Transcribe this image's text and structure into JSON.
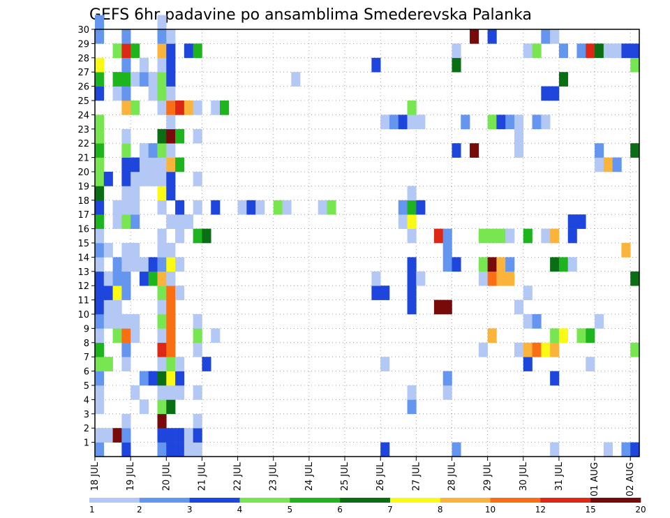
{
  "chart_data": {
    "type": "heatmap",
    "title": "GEFS 6hr padavine po ansamblima Smederevska Palanka",
    "xlabel": "",
    "ylabel": "",
    "grid": true,
    "y_range": [
      0,
      30
    ],
    "x_range": [
      0,
      61
    ],
    "y_ticks": [
      "1",
      "2",
      "3",
      "4",
      "5",
      "6",
      "7",
      "8",
      "9",
      "10",
      "11",
      "12",
      "13",
      "14",
      "15",
      "16",
      "17",
      "18",
      "19",
      "20",
      "21",
      "22",
      "23",
      "24",
      "25",
      "26",
      "27",
      "28",
      "29",
      "30"
    ],
    "x_ticks": [
      {
        "label": "18 JUL",
        "x": 0
      },
      {
        "label": "19 JUL",
        "x": 4
      },
      {
        "label": "20 JUL",
        "x": 8
      },
      {
        "label": "21 JUL",
        "x": 12
      },
      {
        "label": "22 JUL",
        "x": 16
      },
      {
        "label": "23 JUL",
        "x": 20
      },
      {
        "label": "24 JUL",
        "x": 24
      },
      {
        "label": "25 JUL",
        "x": 28
      },
      {
        "label": "26 JUL",
        "x": 32
      },
      {
        "label": "27 JUL",
        "x": 36
      },
      {
        "label": "28 JUL",
        "x": 40
      },
      {
        "label": "29 JUL",
        "x": 44
      },
      {
        "label": "30 JUL",
        "x": 48
      },
      {
        "label": "31 JUL",
        "x": 52
      },
      {
        "label": "01 AUG",
        "x": 56
      },
      {
        "label": "02 AUG",
        "x": 60
      }
    ],
    "legend": {
      "placement": "bottom",
      "colors": [
        "#b4c8f5",
        "#6496f0",
        "#1e46dc",
        "#78e650",
        "#1eb41e",
        "#0a6e14",
        "#fafa14",
        "#fab43c",
        "#fa6e14",
        "#dc2814",
        "#780a0a"
      ],
      "labels": [
        "1",
        "2",
        "3",
        "4",
        "5",
        "6",
        "7",
        "8",
        "10",
        "12",
        "15",
        "20"
      ]
    },
    "cells": [
      [
        0,
        0,
        1
      ],
      [
        0,
        1,
        0
      ],
      [
        0,
        3,
        0
      ],
      [
        0,
        4,
        0
      ],
      [
        0,
        5,
        1
      ],
      [
        0,
        6,
        3
      ],
      [
        0,
        7,
        4
      ],
      [
        0,
        8,
        0
      ],
      [
        0,
        9,
        1
      ],
      [
        0,
        10,
        2
      ],
      [
        0,
        11,
        2
      ],
      [
        0,
        12,
        2
      ],
      [
        0,
        13,
        0
      ],
      [
        0,
        14,
        1
      ],
      [
        0,
        15,
        0
      ],
      [
        0,
        16,
        4
      ],
      [
        0,
        17,
        2
      ],
      [
        0,
        18,
        5
      ],
      [
        0,
        19,
        3
      ],
      [
        0,
        20,
        3
      ],
      [
        0,
        21,
        4
      ],
      [
        0,
        22,
        3
      ],
      [
        0,
        23,
        3
      ],
      [
        0,
        25,
        2
      ],
      [
        0,
        26,
        4
      ],
      [
        0,
        27,
        6
      ],
      [
        0,
        29,
        1
      ],
      [
        0,
        30,
        1
      ],
      [
        1,
        1,
        0
      ],
      [
        1,
        6,
        3
      ],
      [
        1,
        9,
        0
      ],
      [
        1,
        10,
        0
      ],
      [
        1,
        11,
        2
      ],
      [
        1,
        12,
        0
      ],
      [
        1,
        14,
        0
      ],
      [
        1,
        19,
        2
      ],
      [
        2,
        1,
        10
      ],
      [
        2,
        8,
        3
      ],
      [
        2,
        9,
        0
      ],
      [
        2,
        10,
        0
      ],
      [
        2,
        11,
        6
      ],
      [
        2,
        12,
        1
      ],
      [
        2,
        13,
        1
      ],
      [
        2,
        16,
        0
      ],
      [
        2,
        17,
        0
      ],
      [
        2,
        25,
        0
      ],
      [
        2,
        26,
        4
      ],
      [
        2,
        28,
        3
      ],
      [
        3,
        0,
        2
      ],
      [
        3,
        1,
        1
      ],
      [
        3,
        2,
        0
      ],
      [
        3,
        6,
        0
      ],
      [
        3,
        7,
        1
      ],
      [
        3,
        8,
        8
      ],
      [
        3,
        9,
        0
      ],
      [
        3,
        11,
        1
      ],
      [
        3,
        12,
        1
      ],
      [
        3,
        13,
        0
      ],
      [
        3,
        14,
        0
      ],
      [
        3,
        16,
        3
      ],
      [
        3,
        17,
        0
      ],
      [
        3,
        18,
        0
      ],
      [
        3,
        19,
        2
      ],
      [
        3,
        20,
        2
      ],
      [
        3,
        21,
        3
      ],
      [
        3,
        22,
        0
      ],
      [
        3,
        24,
        7
      ],
      [
        3,
        25,
        1
      ],
      [
        3,
        26,
        4
      ],
      [
        3,
        27,
        1
      ],
      [
        3,
        28,
        9
      ],
      [
        3,
        29,
        1
      ],
      [
        4,
        4,
        0
      ],
      [
        4,
        8,
        0
      ],
      [
        4,
        9,
        0
      ],
      [
        4,
        13,
        0
      ],
      [
        4,
        14,
        0
      ],
      [
        4,
        16,
        1
      ],
      [
        4,
        17,
        0
      ],
      [
        4,
        18,
        0
      ],
      [
        4,
        19,
        0
      ],
      [
        4,
        20,
        2
      ],
      [
        4,
        24,
        3
      ],
      [
        4,
        26,
        0
      ],
      [
        4,
        28,
        4
      ],
      [
        5,
        3,
        0
      ],
      [
        5,
        5,
        1
      ],
      [
        5,
        12,
        2
      ],
      [
        5,
        13,
        0
      ],
      [
        5,
        19,
        0
      ],
      [
        5,
        20,
        0
      ],
      [
        5,
        21,
        0
      ],
      [
        5,
        26,
        1
      ],
      [
        5,
        27,
        0
      ],
      [
        6,
        5,
        2
      ],
      [
        6,
        12,
        4
      ],
      [
        6,
        13,
        2
      ],
      [
        6,
        19,
        0
      ],
      [
        6,
        20,
        0
      ],
      [
        6,
        21,
        1
      ],
      [
        6,
        25,
        0
      ],
      [
        6,
        26,
        0
      ],
      [
        7,
        0,
        1
      ],
      [
        7,
        1,
        2
      ],
      [
        7,
        2,
        10
      ],
      [
        7,
        3,
        3
      ],
      [
        7,
        4,
        0
      ],
      [
        7,
        5,
        5
      ],
      [
        7,
        6,
        0
      ],
      [
        7,
        7,
        9
      ],
      [
        7,
        8,
        0
      ],
      [
        7,
        9,
        3
      ],
      [
        7,
        10,
        0
      ],
      [
        7,
        11,
        3
      ],
      [
        7,
        12,
        7
      ],
      [
        7,
        13,
        1
      ],
      [
        7,
        14,
        0
      ],
      [
        7,
        15,
        0
      ],
      [
        7,
        17,
        0
      ],
      [
        7,
        18,
        6
      ],
      [
        7,
        19,
        0
      ],
      [
        7,
        20,
        0
      ],
      [
        7,
        21,
        3
      ],
      [
        7,
        22,
        5
      ],
      [
        7,
        24,
        0
      ],
      [
        7,
        25,
        3
      ],
      [
        7,
        26,
        3
      ],
      [
        7,
        27,
        0
      ],
      [
        7,
        28,
        7
      ],
      [
        7,
        29,
        1
      ],
      [
        7,
        30,
        0
      ],
      [
        8,
        0,
        2
      ],
      [
        8,
        1,
        2
      ],
      [
        8,
        3,
        5
      ],
      [
        8,
        4,
        0
      ],
      [
        8,
        5,
        6
      ],
      [
        8,
        6,
        3
      ],
      [
        8,
        7,
        8
      ],
      [
        8,
        8,
        8
      ],
      [
        8,
        9,
        8
      ],
      [
        8,
        10,
        8
      ],
      [
        8,
        11,
        8
      ],
      [
        8,
        12,
        0
      ],
      [
        8,
        13,
        6
      ],
      [
        8,
        14,
        0
      ],
      [
        8,
        16,
        0
      ],
      [
        8,
        18,
        2
      ],
      [
        8,
        19,
        2
      ],
      [
        8,
        20,
        7
      ],
      [
        8,
        21,
        0
      ],
      [
        8,
        22,
        10
      ],
      [
        8,
        23,
        0
      ],
      [
        8,
        24,
        8
      ],
      [
        8,
        25,
        0
      ],
      [
        8,
        26,
        2
      ],
      [
        8,
        27,
        2
      ],
      [
        8,
        28,
        2
      ],
      [
        8,
        29,
        0
      ],
      [
        9,
        0,
        2
      ],
      [
        9,
        1,
        2
      ],
      [
        9,
        4,
        0
      ],
      [
        9,
        5,
        2
      ],
      [
        9,
        6,
        0
      ],
      [
        9,
        11,
        0
      ],
      [
        9,
        13,
        0
      ],
      [
        9,
        15,
        0
      ],
      [
        9,
        16,
        0
      ],
      [
        9,
        17,
        2
      ],
      [
        9,
        20,
        4
      ],
      [
        9,
        22,
        4
      ],
      [
        9,
        24,
        9
      ],
      [
        10,
        0,
        0
      ],
      [
        10,
        1,
        0
      ],
      [
        10,
        16,
        0
      ],
      [
        10,
        24,
        7
      ],
      [
        10,
        28,
        2
      ],
      [
        11,
        0,
        0
      ],
      [
        11,
        1,
        2
      ],
      [
        11,
        2,
        0
      ],
      [
        11,
        4,
        0
      ],
      [
        11,
        7,
        0
      ],
      [
        11,
        8,
        3
      ],
      [
        11,
        9,
        0
      ],
      [
        11,
        15,
        4
      ],
      [
        11,
        17,
        0
      ],
      [
        11,
        19,
        0
      ],
      [
        11,
        22,
        0
      ],
      [
        11,
        24,
        0
      ],
      [
        11,
        28,
        4
      ],
      [
        12,
        6,
        2
      ],
      [
        12,
        15,
        5
      ],
      [
        13,
        8,
        0
      ],
      [
        13,
        17,
        2
      ],
      [
        13,
        24,
        0
      ],
      [
        14,
        24,
        4
      ],
      [
        16,
        17,
        0
      ],
      [
        17,
        17,
        2
      ],
      [
        18,
        17,
        0
      ],
      [
        20,
        17,
        3
      ],
      [
        21,
        17,
        0
      ],
      [
        22,
        26,
        0
      ],
      [
        25,
        17,
        0
      ],
      [
        26,
        17,
        3
      ],
      [
        31,
        11,
        2
      ],
      [
        31,
        12,
        0
      ],
      [
        31,
        27,
        2
      ],
      [
        32,
        0,
        2
      ],
      [
        32,
        6,
        0
      ],
      [
        32,
        11,
        2
      ],
      [
        32,
        23,
        0
      ],
      [
        33,
        23,
        1
      ],
      [
        34,
        16,
        0
      ],
      [
        34,
        17,
        1
      ],
      [
        34,
        23,
        2
      ],
      [
        35,
        3,
        1
      ],
      [
        35,
        4,
        0
      ],
      [
        35,
        10,
        2
      ],
      [
        35,
        11,
        2
      ],
      [
        35,
        12,
        2
      ],
      [
        35,
        13,
        2
      ],
      [
        35,
        15,
        0
      ],
      [
        35,
        16,
        6
      ],
      [
        35,
        17,
        4
      ],
      [
        35,
        18,
        0
      ],
      [
        35,
        23,
        0
      ],
      [
        35,
        24,
        3
      ],
      [
        36,
        12,
        0
      ],
      [
        36,
        17,
        2
      ],
      [
        36,
        23,
        0
      ],
      [
        38,
        10,
        10
      ],
      [
        38,
        15,
        9
      ],
      [
        39,
        4,
        0
      ],
      [
        39,
        5,
        1
      ],
      [
        39,
        10,
        10
      ],
      [
        39,
        13,
        1
      ],
      [
        39,
        14,
        1
      ],
      [
        39,
        15,
        1
      ],
      [
        40,
        0,
        1
      ],
      [
        40,
        13,
        2
      ],
      [
        40,
        21,
        2
      ],
      [
        40,
        27,
        5
      ],
      [
        40,
        28,
        0
      ],
      [
        41,
        23,
        1
      ],
      [
        42,
        21,
        10
      ],
      [
        42,
        29,
        10
      ],
      [
        43,
        7,
        0
      ],
      [
        43,
        12,
        0
      ],
      [
        43,
        13,
        3
      ],
      [
        43,
        15,
        3
      ],
      [
        44,
        8,
        7
      ],
      [
        44,
        12,
        8
      ],
      [
        44,
        13,
        10
      ],
      [
        44,
        15,
        3
      ],
      [
        44,
        23,
        3
      ],
      [
        44,
        29,
        2
      ],
      [
        45,
        12,
        7
      ],
      [
        45,
        13,
        7
      ],
      [
        45,
        15,
        3
      ],
      [
        45,
        23,
        2
      ],
      [
        46,
        12,
        7
      ],
      [
        46,
        13,
        1
      ],
      [
        46,
        15,
        0
      ],
      [
        46,
        23,
        1
      ],
      [
        47,
        7,
        0
      ],
      [
        47,
        10,
        0
      ],
      [
        47,
        21,
        0
      ],
      [
        47,
        22,
        0
      ],
      [
        47,
        23,
        0
      ],
      [
        48,
        6,
        2
      ],
      [
        48,
        7,
        7
      ],
      [
        48,
        9,
        0
      ],
      [
        48,
        11,
        0
      ],
      [
        48,
        15,
        4
      ],
      [
        48,
        28,
        0
      ],
      [
        49,
        7,
        8
      ],
      [
        49,
        9,
        1
      ],
      [
        49,
        23,
        1
      ],
      [
        49,
        28,
        3
      ],
      [
        50,
        7,
        6
      ],
      [
        50,
        15,
        0
      ],
      [
        50,
        23,
        0
      ],
      [
        50,
        25,
        2
      ],
      [
        50,
        29,
        1
      ],
      [
        51,
        0,
        0
      ],
      [
        51,
        5,
        2
      ],
      [
        51,
        7,
        7
      ],
      [
        51,
        8,
        3
      ],
      [
        51,
        13,
        5
      ],
      [
        51,
        15,
        7
      ],
      [
        51,
        25,
        2
      ],
      [
        51,
        29,
        0
      ],
      [
        52,
        8,
        6
      ],
      [
        52,
        13,
        4
      ],
      [
        52,
        26,
        5
      ],
      [
        52,
        28,
        1
      ],
      [
        53,
        13,
        0
      ],
      [
        53,
        16,
        2
      ],
      [
        53,
        15,
        2
      ],
      [
        54,
        8,
        3
      ],
      [
        54,
        16,
        2
      ],
      [
        54,
        28,
        1
      ],
      [
        55,
        6,
        0
      ],
      [
        55,
        8,
        4
      ],
      [
        55,
        28,
        9
      ],
      [
        56,
        9,
        0
      ],
      [
        56,
        20,
        0
      ],
      [
        56,
        21,
        1
      ],
      [
        56,
        28,
        5
      ],
      [
        57,
        0,
        0
      ],
      [
        57,
        20,
        7
      ],
      [
        57,
        28,
        0
      ],
      [
        58,
        20,
        1
      ],
      [
        58,
        28,
        0
      ],
      [
        59,
        0,
        1
      ],
      [
        59,
        14,
        7
      ],
      [
        59,
        28,
        2
      ],
      [
        60,
        0,
        2
      ],
      [
        60,
        7,
        3
      ],
      [
        60,
        12,
        5
      ],
      [
        60,
        21,
        5
      ],
      [
        60,
        27,
        3
      ],
      [
        60,
        28,
        2
      ]
    ]
  }
}
